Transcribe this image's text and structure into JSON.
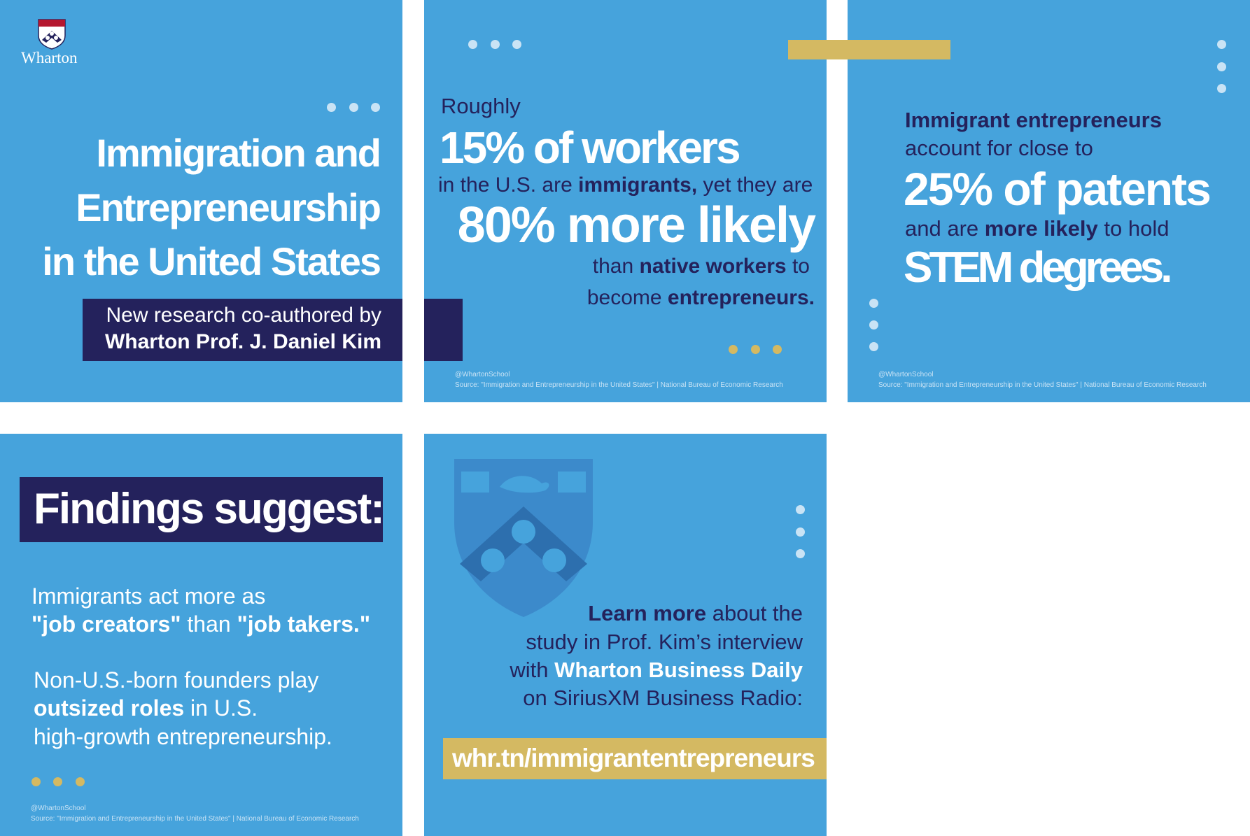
{
  "panels": [
    {
      "logo": "Wharton",
      "title": [
        "Immigration and",
        "Entrepreneurship",
        "in the United States"
      ],
      "subtitle": [
        "New research co-authored by",
        "Wharton Prof. J. Daniel Kim"
      ]
    },
    {
      "intro": "Roughly",
      "stat1": "15% of workers",
      "line3": [
        "in the U.S. are",
        "immigrants,",
        "yet they are"
      ],
      "stat2": "80% more likely",
      "line5": [
        "than",
        "native workers",
        "to"
      ],
      "line6": [
        "become",
        "entrepreneurs."
      ],
      "handle": "@WhartonSchool",
      "source": "Source: \"Immigration and Entrepreneurship in the United States\" | National Bureau of Economic Research"
    },
    {
      "line1": "Immigrant entrepreneurs",
      "line2": "account for close to",
      "stat1": "25% of patents",
      "line4": [
        "and are",
        "more likely",
        "to hold"
      ],
      "stat2": "STEM degrees.",
      "handle": "@WhartonSchool",
      "source": "Source: \"Immigration and Entrepreneurship in the United States\" | National Bureau of Economic Research"
    },
    {
      "heading": "Findings suggest:",
      "p1_line1": "Immigrants act more as",
      "p1_line2": [
        "\"job creators\"",
        "than",
        "\"job takers.\""
      ],
      "p2_line1": "Non-U.S.-born founders play",
      "p2_line2": [
        "outsized roles",
        "in U.S."
      ],
      "p2_line3": "high-growth entrepreneurship.",
      "handle": "@WhartonSchool",
      "source": "Source: \"Immigration and Entrepreneurship in the United States\" | National Bureau of Economic Research"
    },
    {
      "line1": [
        "Learn more",
        "about the"
      ],
      "line2": "study in Prof. Kim’s interview",
      "line3": [
        "with",
        "Wharton Business Daily"
      ],
      "line4": "on SiriusXM Business Radio:",
      "link": "whr.tn/immigrantentrepreneurs"
    }
  ]
}
